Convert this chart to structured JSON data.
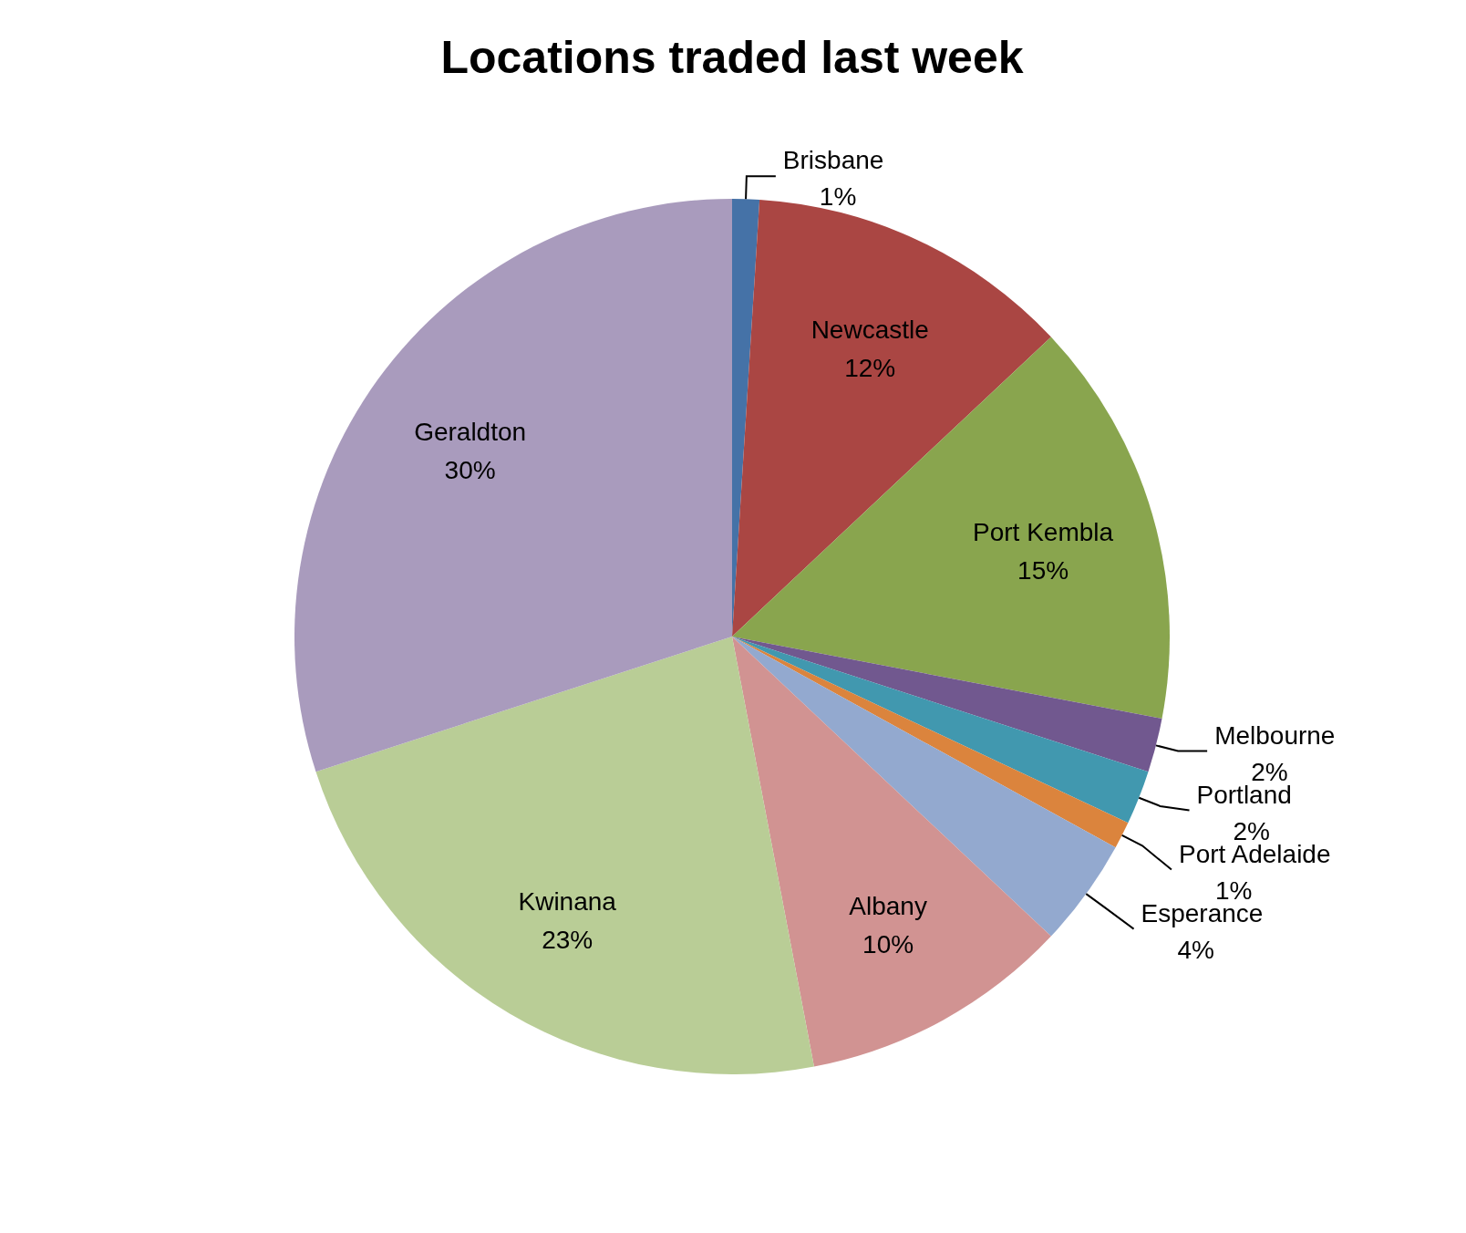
{
  "chart_data": {
    "type": "pie",
    "title": "Locations traded last week",
    "categories": [
      "Brisbane",
      "Newcastle",
      "Port Kembla",
      "Melbourne",
      "Portland",
      "Port Adelaide",
      "Esperance",
      "Albany",
      "Kwinana",
      "Geraldton"
    ],
    "values": [
      1,
      12,
      15,
      2,
      2,
      1,
      4,
      10,
      23,
      30
    ],
    "value_labels": [
      "1%",
      "12%",
      "15%",
      "2%",
      "2%",
      "1%",
      "4%",
      "10%",
      "23%",
      "30%"
    ],
    "colors": [
      "#4572a7",
      "#aa4643",
      "#89a54e",
      "#71588f",
      "#4198af",
      "#db843d",
      "#93a9cf",
      "#d19392",
      "#b9cd96",
      "#a99bbd"
    ]
  }
}
